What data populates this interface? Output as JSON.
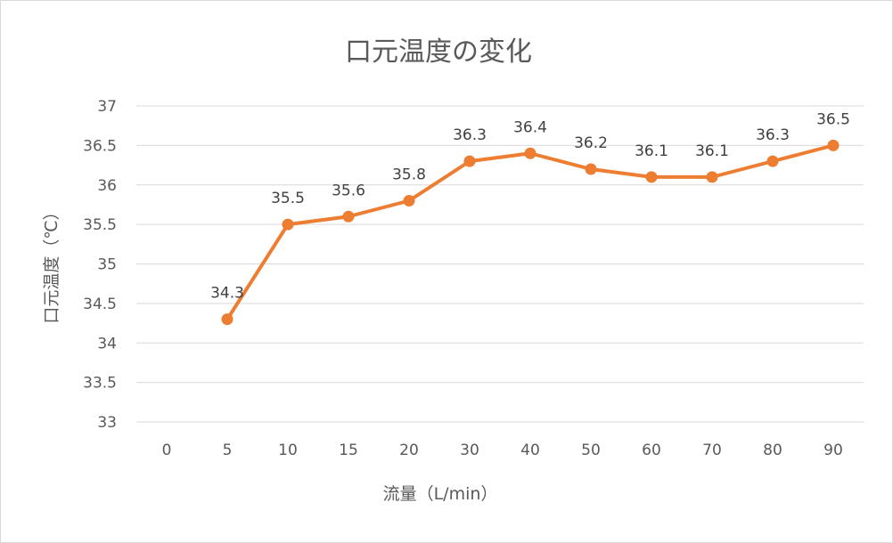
{
  "chart_data": {
    "type": "line",
    "title": "口元温度の変化",
    "xlabel": "流量（L/min）",
    "ylabel": "口元温度（℃）",
    "categories": [
      "0",
      "5",
      "10",
      "15",
      "20",
      "30",
      "40",
      "50",
      "60",
      "70",
      "80",
      "90"
    ],
    "series": [
      {
        "name": "口元温度",
        "values": [
          null,
          34.3,
          35.5,
          35.6,
          35.8,
          36.3,
          36.4,
          36.2,
          36.1,
          36.1,
          36.3,
          36.5
        ]
      }
    ],
    "data_labels": [
      "",
      "34.3",
      "35.5",
      "35.6",
      "35.8",
      "36.3",
      "36.4",
      "36.2",
      "36.1",
      "36.1",
      "36.3",
      "36.5"
    ],
    "ylim": [
      33,
      37
    ],
    "yticks": [
      "33",
      "33.5",
      "34",
      "34.5",
      "35",
      "35.5",
      "36",
      "36.5",
      "37"
    ],
    "grid": true,
    "legend": "none",
    "colors": {
      "line": "#ED7D31",
      "grid": "#D9D9D9",
      "text": "#595959"
    }
  }
}
